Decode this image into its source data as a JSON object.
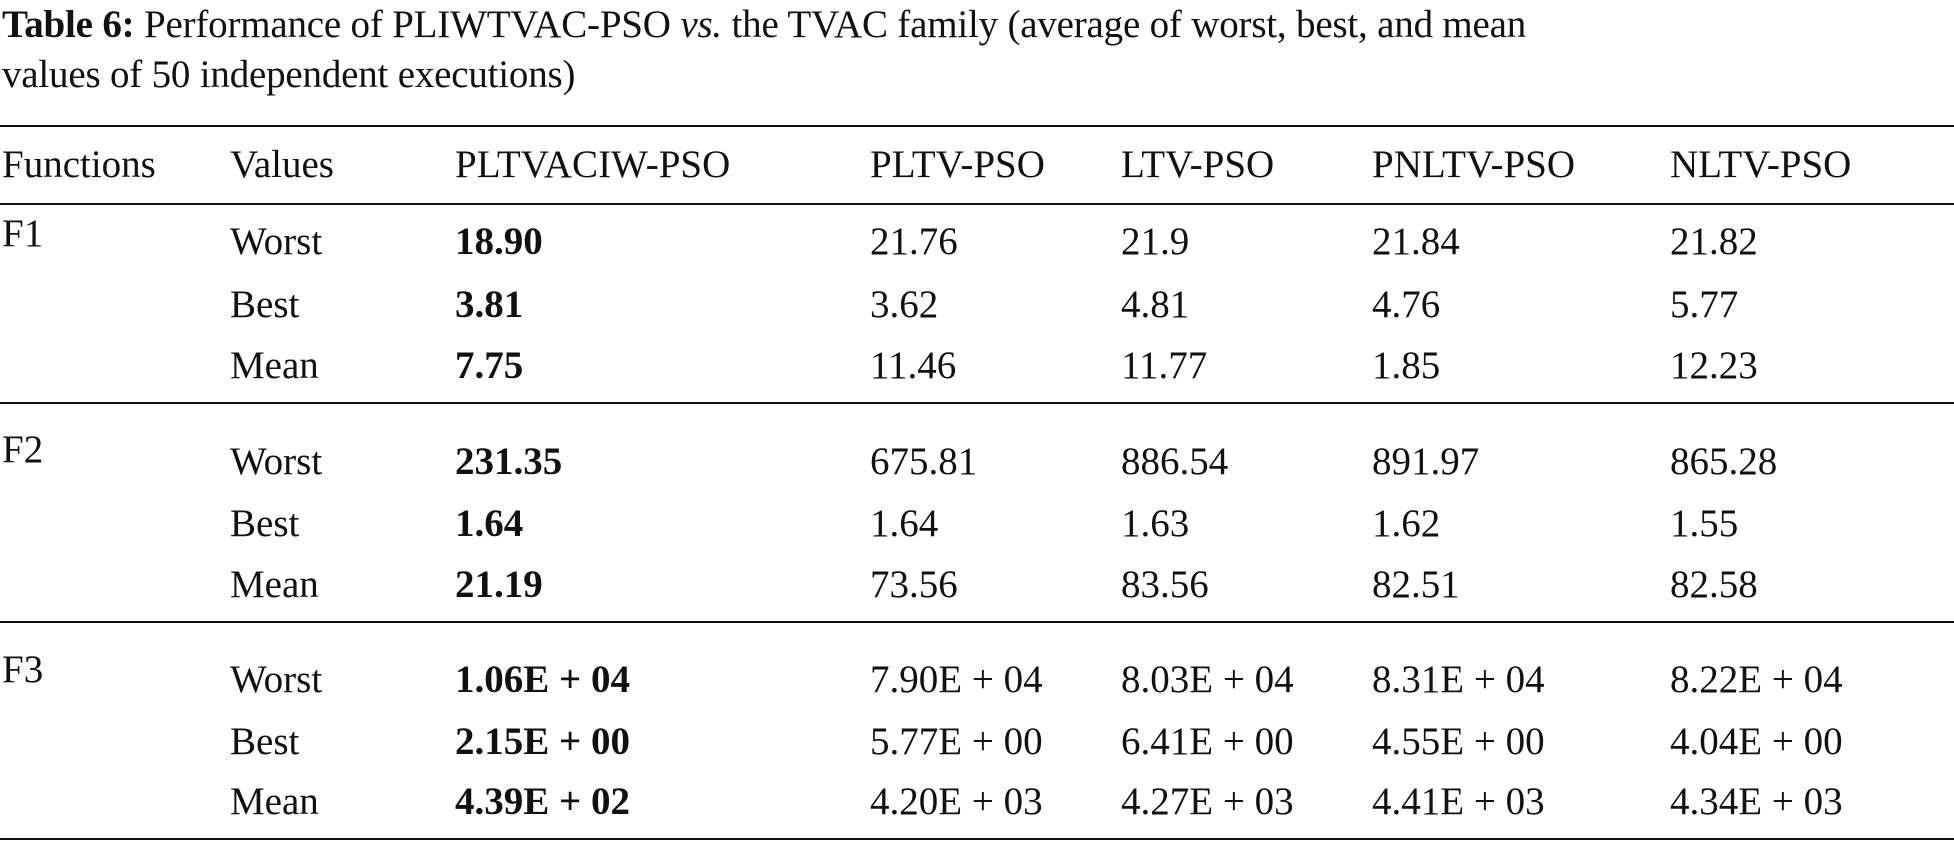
{
  "caption": {
    "label": "Table 6:",
    "text_before": "Performance of PLIWTVAC-PSO",
    "vs": "vs.",
    "text_after": "the TVAC family (average of worst, best, and mean",
    "line2": "values of 50 independent executions)"
  },
  "table": {
    "headers": [
      "Functions",
      "Values",
      "PLTVACIW-PSO",
      "PLTV-PSO",
      "LTV-PSO",
      "PNLTV-PSO",
      "NLTV-PSO"
    ],
    "groups": [
      {
        "function": "F1",
        "rows": [
          {
            "value": "Worst",
            "cells": [
              "18.90",
              "21.76",
              "21.9",
              "21.84",
              "21.82"
            ]
          },
          {
            "value": "Best",
            "cells": [
              "3.81",
              "3.62",
              "4.81",
              "4.76",
              "5.77"
            ]
          },
          {
            "value": "Mean",
            "cells": [
              "7.75",
              "11.46",
              "11.77",
              "1.85",
              "12.23"
            ]
          }
        ]
      },
      {
        "function": "F2",
        "rows": [
          {
            "value": "Worst",
            "cells": [
              "231.35",
              "675.81",
              "886.54",
              "891.97",
              "865.28"
            ]
          },
          {
            "value": "Best",
            "cells": [
              "1.64",
              "1.64",
              "1.63",
              "1.62",
              "1.55"
            ]
          },
          {
            "value": "Mean",
            "cells": [
              "21.19",
              "73.56",
              "83.56",
              "82.51",
              "82.58"
            ]
          }
        ]
      },
      {
        "function": "F3",
        "rows": [
          {
            "value": "Worst",
            "cells": [
              "1.06E + 04",
              "7.90E + 04",
              "8.03E + 04",
              "8.31E + 04",
              "8.22E + 04"
            ]
          },
          {
            "value": "Best",
            "cells": [
              "2.15E + 00",
              "5.77E + 00",
              "6.41E + 00",
              "4.55E + 00",
              "4.04E + 00"
            ]
          },
          {
            "value": "Mean",
            "cells": [
              "4.39E + 02",
              "4.20E + 03",
              "4.27E + 03",
              "4.41E + 03",
              "4.34E + 03"
            ]
          }
        ]
      }
    ]
  }
}
